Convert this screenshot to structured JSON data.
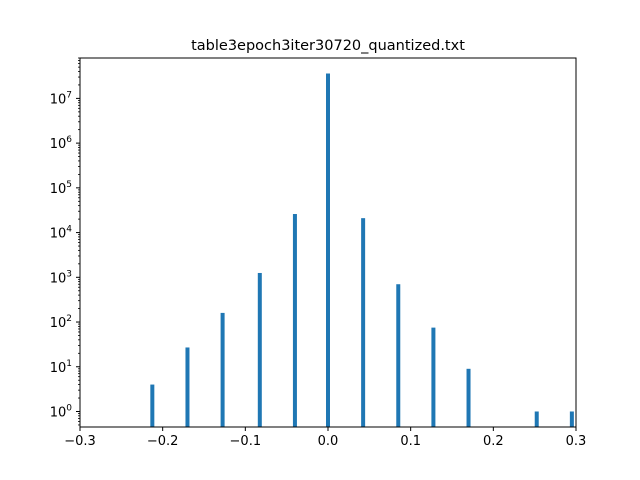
{
  "chart_data": {
    "type": "bar",
    "title": "table3epoch3iter30720_quantized.txt",
    "xlabel": "",
    "ylabel": "",
    "y_scale": "log",
    "xlim": [
      -0.3,
      0.3
    ],
    "ylim": [
      0.45,
      80000000
    ],
    "x_ticks": [
      {
        "value": -0.3,
        "label": "−0.3"
      },
      {
        "value": -0.2,
        "label": "−0.2"
      },
      {
        "value": -0.1,
        "label": "−0.1"
      },
      {
        "value": 0.0,
        "label": "0.0"
      },
      {
        "value": 0.1,
        "label": "0.1"
      },
      {
        "value": 0.2,
        "label": "0.2"
      },
      {
        "value": 0.3,
        "label": "0.3"
      }
    ],
    "y_ticks": [
      {
        "value": 1,
        "base": "10",
        "exp": "0"
      },
      {
        "value": 10,
        "base": "10",
        "exp": "1"
      },
      {
        "value": 100,
        "base": "10",
        "exp": "2"
      },
      {
        "value": 1000,
        "base": "10",
        "exp": "3"
      },
      {
        "value": 10000,
        "base": "10",
        "exp": "4"
      },
      {
        "value": 100000,
        "base": "10",
        "exp": "5"
      },
      {
        "value": 1000000,
        "base": "10",
        "exp": "6"
      },
      {
        "value": 10000000,
        "base": "10",
        "exp": "7"
      }
    ],
    "series": [
      {
        "x": [
          -0.2125,
          -0.17,
          -0.1275,
          -0.0825,
          -0.04,
          0.0,
          0.0425,
          0.085,
          0.1275,
          0.17,
          0.2525,
          0.295
        ],
        "values": [
          4,
          27,
          160,
          1250,
          26000,
          36000000,
          21000,
          700,
          75,
          9,
          1,
          1
        ]
      }
    ],
    "bar_color": "#1f77b4",
    "grid": false,
    "legend": "none"
  }
}
